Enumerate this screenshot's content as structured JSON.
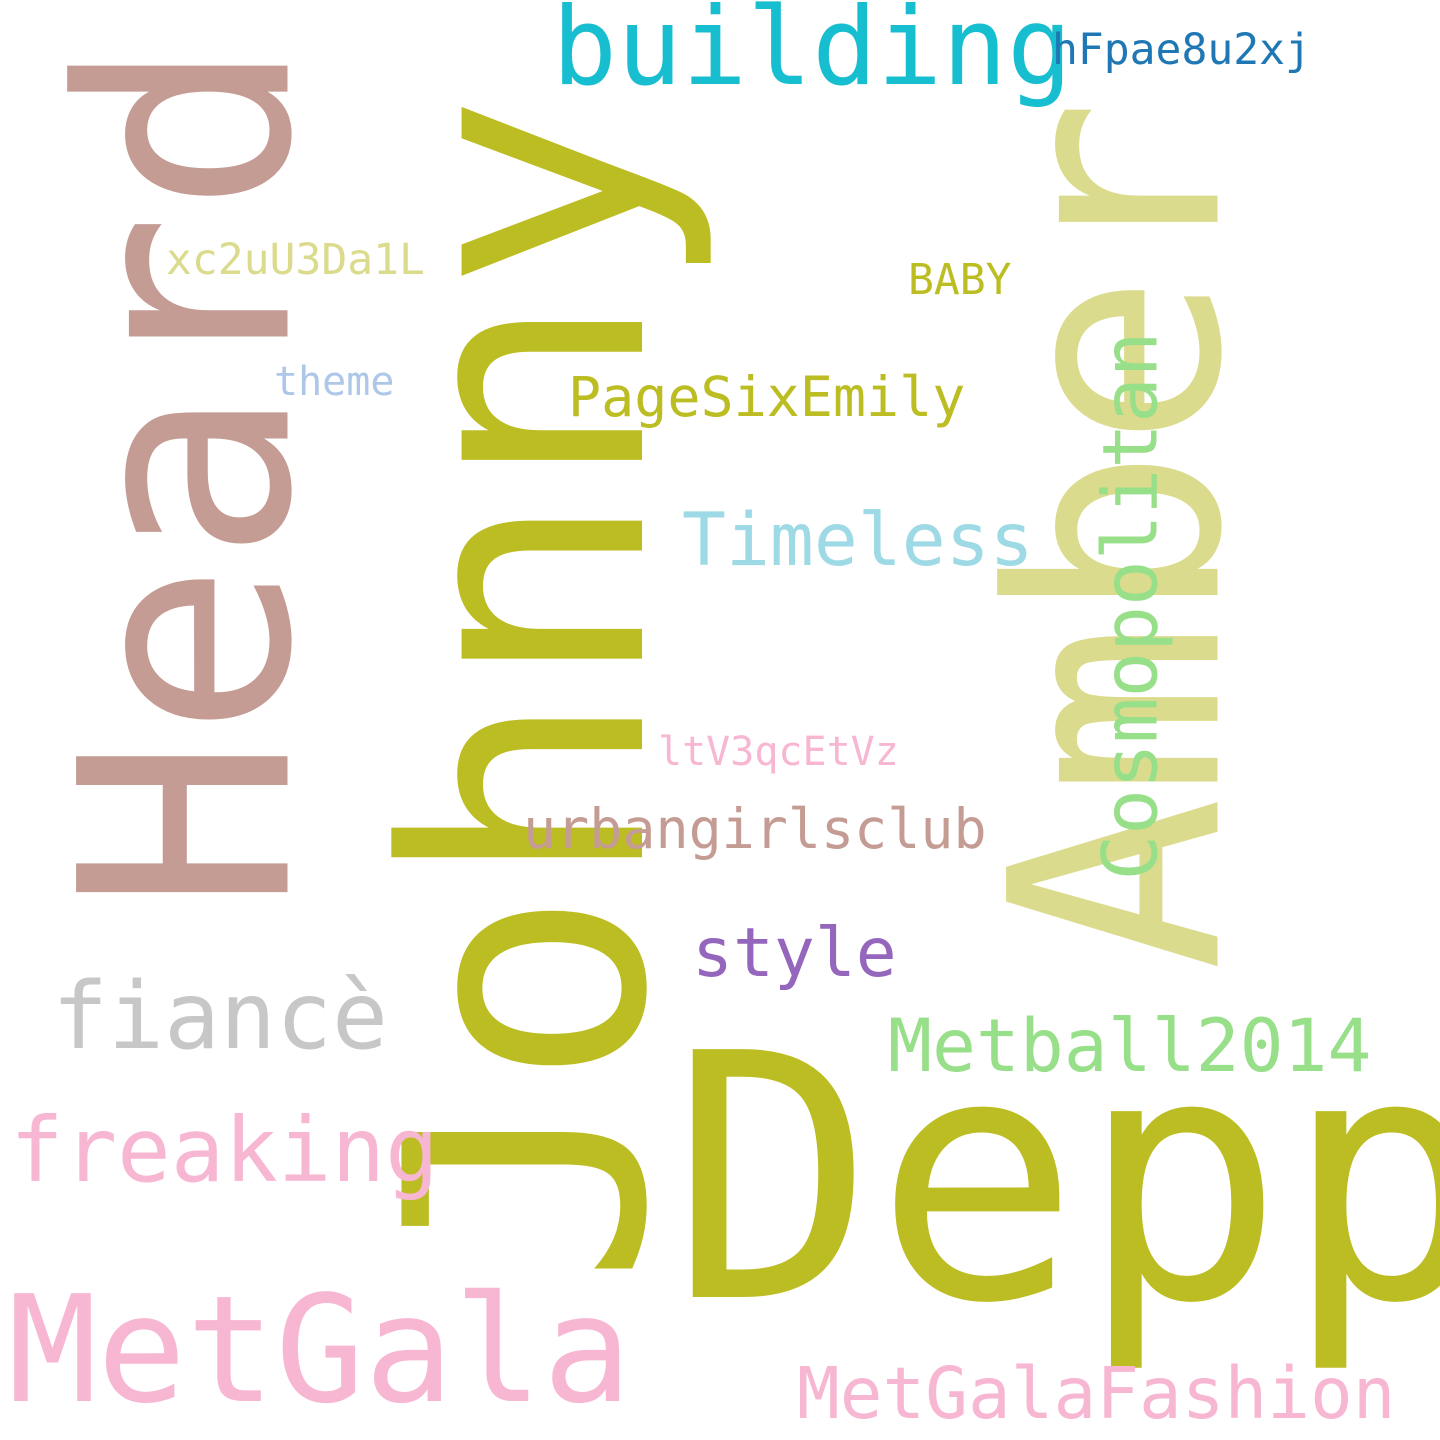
{
  "words": [
    {
      "text": "Johnny",
      "color": "#bcbd22",
      "rotated": true
    },
    {
      "text": "Heard",
      "color": "#c49c94",
      "rotated": true
    },
    {
      "text": "Amber",
      "color": "#dbdb8d",
      "rotated": true
    },
    {
      "text": "Depp",
      "color": "#bcbd22",
      "rotated": false
    },
    {
      "text": "MetGala",
      "color": "#f7b6d2",
      "rotated": false
    },
    {
      "text": "building",
      "color": "#17becf",
      "rotated": false
    },
    {
      "text": "freaking",
      "color": "#f7b6d2",
      "rotated": false
    },
    {
      "text": "fiancè",
      "color": "#c7c7c7",
      "rotated": false
    },
    {
      "text": "Cosmopolitan",
      "color": "#98df8a",
      "rotated": true
    },
    {
      "text": "MetGalaFashion",
      "color": "#f7b6d2",
      "rotated": false
    },
    {
      "text": "Metball2014",
      "color": "#98df8a",
      "rotated": false
    },
    {
      "text": "Timeless",
      "color": "#9edae5",
      "rotated": false
    },
    {
      "text": "urbangirlsclub",
      "color": "#c49c94",
      "rotated": false
    },
    {
      "text": "PageSixEmily",
      "color": "#bcbd22",
      "rotated": false
    },
    {
      "text": "style",
      "color": "#9467bd",
      "rotated": false
    },
    {
      "text": "hFpae8u2xj",
      "color": "#1f77b4",
      "rotated": false
    },
    {
      "text": "xc2uU3Da1L",
      "color": "#dbdb8d",
      "rotated": false
    },
    {
      "text": "BABY",
      "color": "#bcbd22",
      "rotated": false
    },
    {
      "text": "ltV3qcEtVz",
      "color": "#f7b6d2",
      "rotated": false
    },
    {
      "text": "theme",
      "color": "#aec7e8",
      "rotated": false
    }
  ]
}
